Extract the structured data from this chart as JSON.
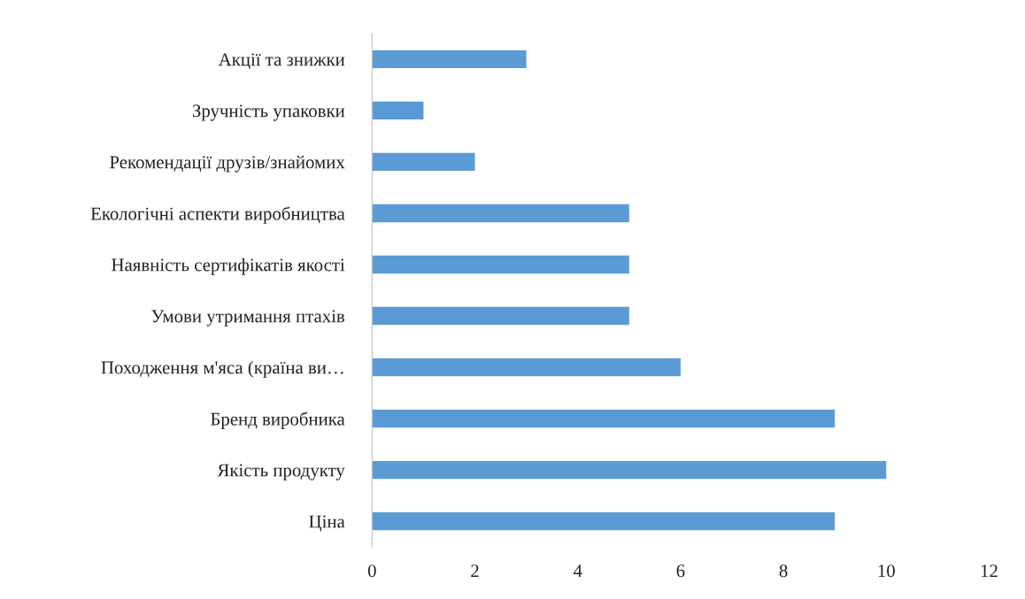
{
  "chart_data": {
    "type": "bar",
    "orientation": "horizontal",
    "categories": [
      "Акції та знижки",
      "Зручність упаковки",
      "Рекомендації друзів/знайомих",
      "Екологічні аспекти виробництва",
      "Наявність сертифікатів якості",
      "Умови утримання птахів",
      "Походження м'яса (країна ви…",
      "Бренд виробника",
      "Якість продукту",
      "Ціна"
    ],
    "values": [
      3,
      1,
      2,
      5,
      5,
      5,
      6,
      9,
      10,
      9
    ],
    "color": "#5b9bd5",
    "xlim": [
      0,
      12
    ],
    "xticks": [
      0,
      2,
      4,
      6,
      8,
      10,
      12
    ],
    "grid": false
  }
}
